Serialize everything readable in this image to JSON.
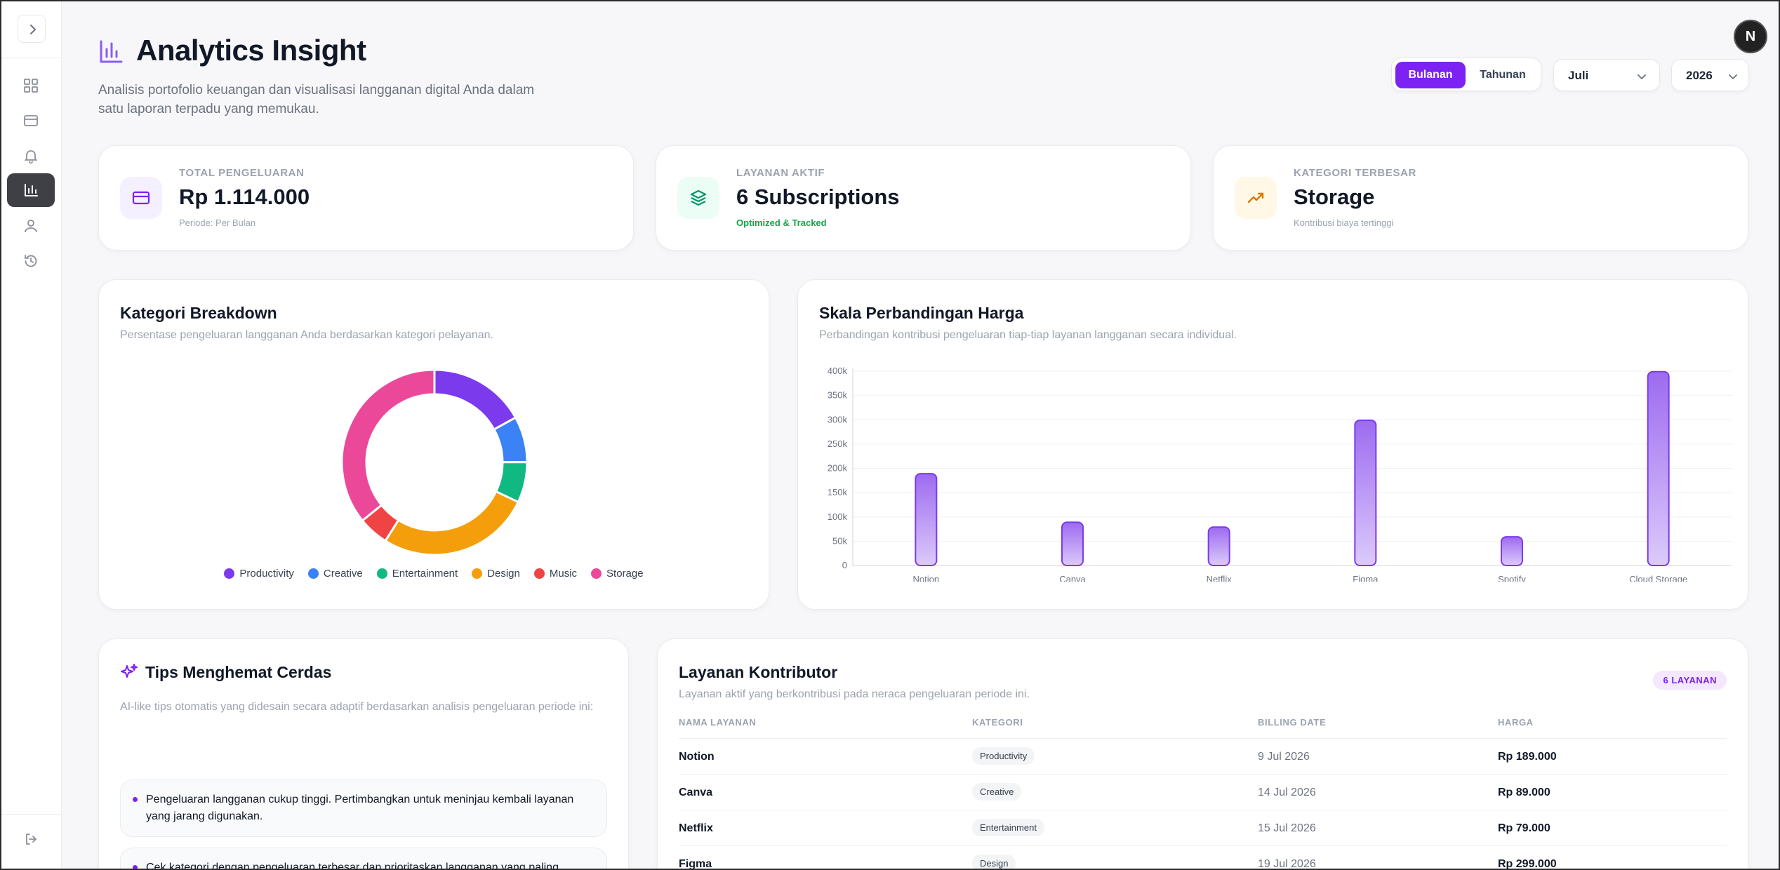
{
  "header": {
    "title": "Analytics Insight",
    "description": "Analisis portofolio keuangan dan visualisasi langganan digital Anda dalam satu laporan terpadu yang memukau.",
    "period_on": "Bulanan",
    "period_off": "Tahunan",
    "month": "Juli",
    "year": "2026",
    "avatar": "N"
  },
  "sidebar": {
    "icons": [
      "chevron-right-icon",
      "dashboard-grid-icon",
      "credit-card-icon",
      "bell-icon",
      "bar-chart-icon",
      "user-icon",
      "history-icon",
      "logout-icon"
    ],
    "active": "bar-chart-icon"
  },
  "stats": [
    {
      "label": "TOTAL PENGELUARAN",
      "value": "Rp 1.114.000",
      "sub": "Periode: Per Bulan"
    },
    {
      "label": "LAYANAN AKTIF",
      "value": "6 Subscriptions",
      "sub": "Optimized & Tracked"
    },
    {
      "label": "KATEGORI TERBESAR",
      "value": "Storage",
      "sub": "Kontribusi biaya tertinggi"
    }
  ],
  "breakdown": {
    "title": "Kategori Breakdown",
    "subtitle": "Persentase pengeluaran langganan Anda berdasarkan kategori pelayanan."
  },
  "price_chart": {
    "title": "Skala Perbandingan Harga",
    "subtitle": "Perbandingan kontribusi pengeluaran tiap-tiap layanan langganan secara individual."
  },
  "chart_data": [
    {
      "type": "pie",
      "categories": [
        "Productivity",
        "Creative",
        "Entertainment",
        "Design",
        "Music",
        "Storage"
      ],
      "values": [
        189000,
        89000,
        79000,
        299000,
        59000,
        399000
      ],
      "colors": [
        "#7c3aed",
        "#3b82f6",
        "#10b981",
        "#f59e0b",
        "#ef4444",
        "#ec4899"
      ],
      "legend": "bottom"
    },
    {
      "type": "bar",
      "categories": [
        "Notion",
        "Canva",
        "Netflix",
        "Figma",
        "Spotify",
        "Cloud Storage"
      ],
      "values": [
        189000,
        89000,
        79000,
        299000,
        59000,
        399000
      ],
      "ylim": [
        0,
        400000
      ],
      "yticks": [
        0,
        50000,
        100000,
        150000,
        200000,
        250000,
        300000,
        350000,
        400000
      ],
      "ytick_labels": [
        "0",
        "50k",
        "100k",
        "150k",
        "200k",
        "250k",
        "300k",
        "350k",
        "400k"
      ],
      "grid": true,
      "color": "#8b5cf6"
    }
  ],
  "tips": {
    "title": "Tips Menghemat Cerdas",
    "subtitle": "AI-like tips otomatis yang didesain secara adaptif berdasarkan analisis pengeluaran periode ini:",
    "items": [
      "Pengeluaran langganan cukup tinggi. Pertimbangkan untuk meninjau kembali layanan yang jarang digunakan.",
      "Cek kategori dengan pengeluaran terbesar dan prioritaskan langganan yang paling"
    ]
  },
  "contributors": {
    "title": "Layanan Kontributor",
    "subtitle": "Layanan aktif yang berkontribusi pada neraca pengeluaran periode ini.",
    "badge": "6 LAYANAN",
    "columns": [
      "NAMA LAYANAN",
      "KATEGORI",
      "BILLING DATE",
      "HARGA"
    ],
    "rows": [
      {
        "name": "Notion",
        "category": "Productivity",
        "date": "9 Jul 2026",
        "price": "Rp 189.000"
      },
      {
        "name": "Canva",
        "category": "Creative",
        "date": "14 Jul 2026",
        "price": "Rp 89.000"
      },
      {
        "name": "Netflix",
        "category": "Entertainment",
        "date": "15 Jul 2026",
        "price": "Rp 79.000"
      },
      {
        "name": "Figma",
        "category": "Design",
        "date": "19 Jul 2026",
        "price": "Rp 299.000"
      }
    ]
  }
}
